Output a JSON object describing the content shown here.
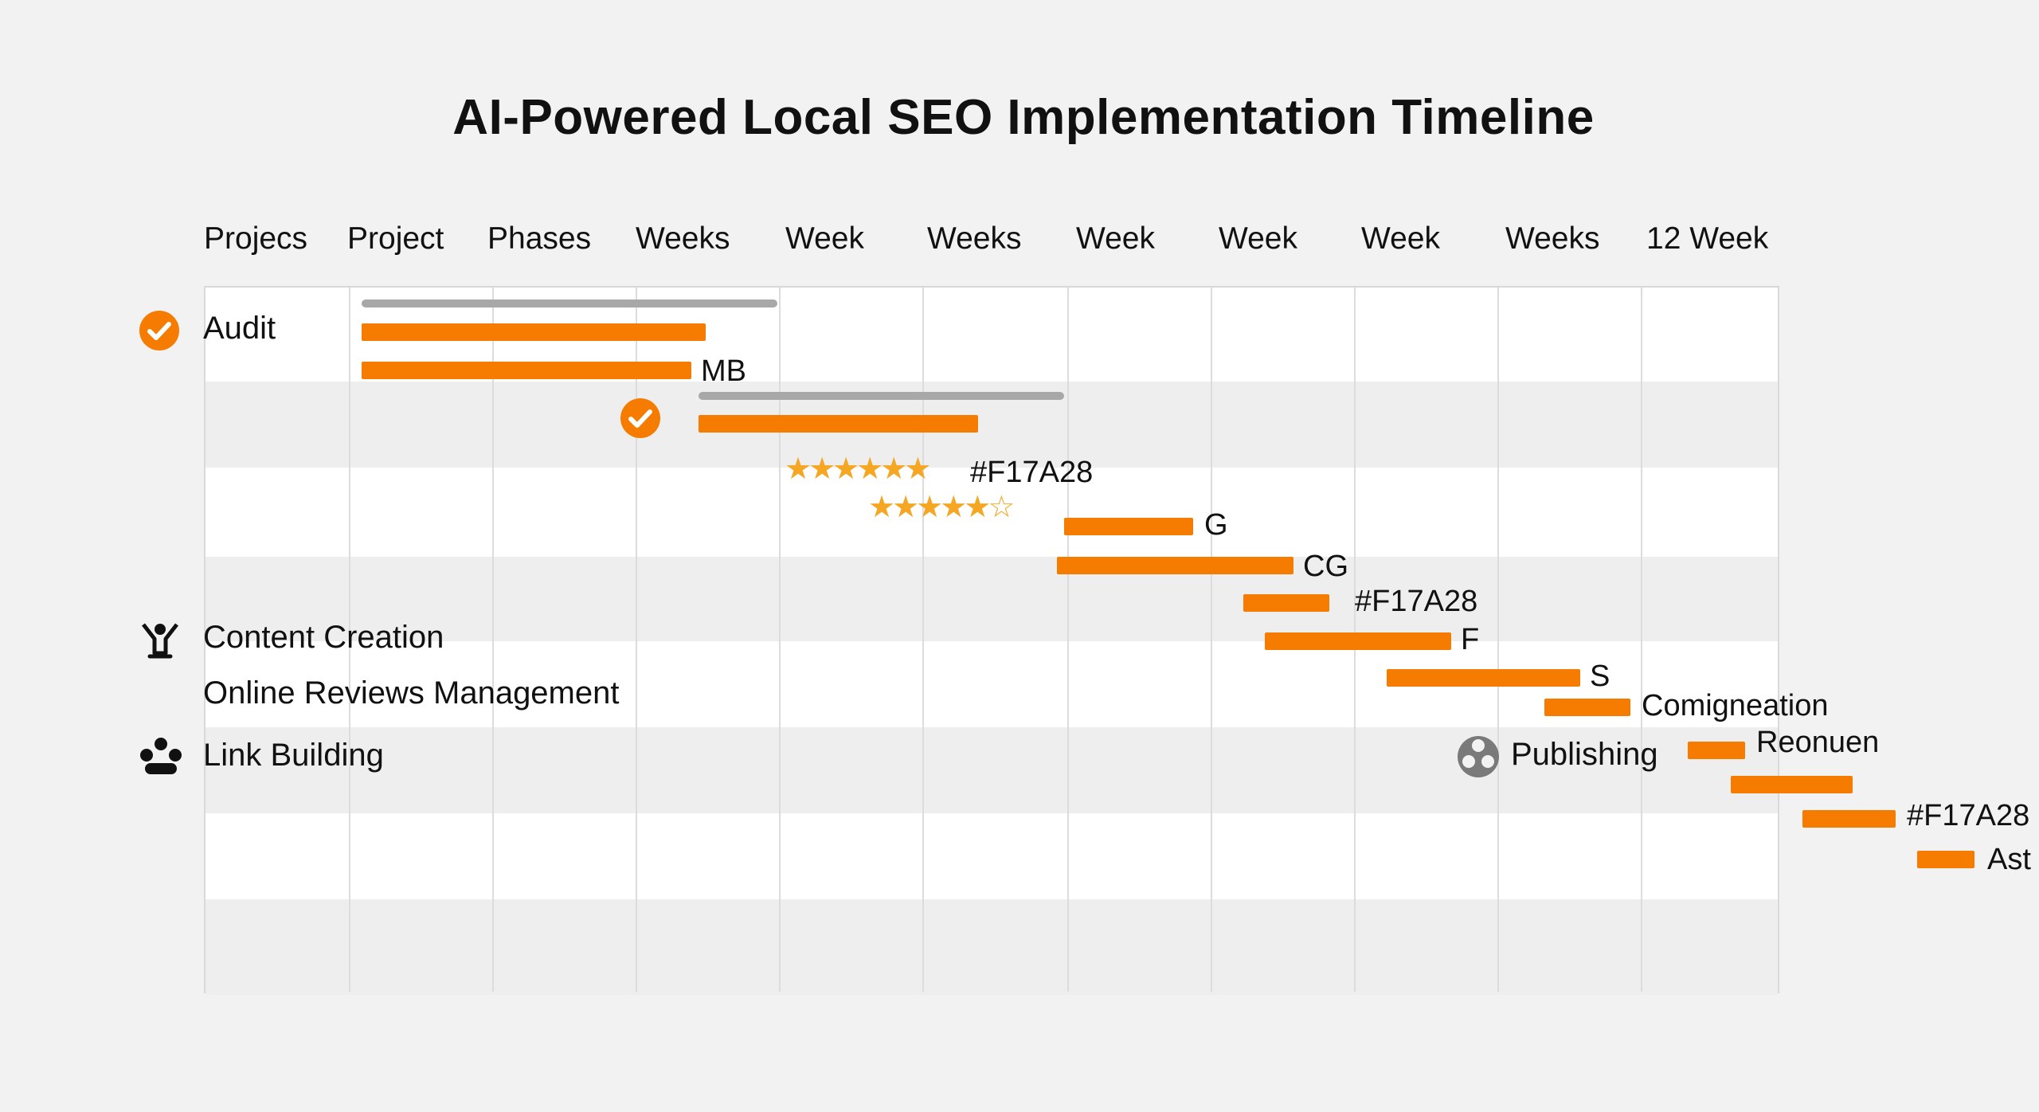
{
  "title": "AI-Powered Local SEO Implementation Timeline",
  "colors": {
    "accent": "#F57C00",
    "summary": "#A8A8A8",
    "star": "#F5A623",
    "band_light": "#ffffff",
    "band_dark": "#eeeeee"
  },
  "column_headers": [
    "Projecs",
    "Project",
    "Phases",
    "Weeks",
    "Week",
    "Weeks",
    "Week",
    "Week",
    "Week",
    "Weeks",
    "12 Week"
  ],
  "tasks": [
    {
      "label": "Audit",
      "icon": "check-circle-icon"
    },
    {
      "label": "Content Creation",
      "icon": "person-raising-arms-icon"
    },
    {
      "label": "Online Reviews Management",
      "icon": ""
    },
    {
      "label": "Link Building",
      "icon": "people-group-icon"
    }
  ],
  "publishing": {
    "label": "Publishing",
    "icon": "grey-users-circle-icon"
  },
  "ratings": [
    {
      "stars": "★★★★★★",
      "value": 6
    },
    {
      "stars": "★★★★★☆",
      "value": 5.5
    }
  ],
  "chart_data": {
    "type": "gantt",
    "title": "AI-Powered Local SEO Implementation Timeline",
    "x_ticks": [
      "Projecs",
      "Project",
      "Phases",
      "Weeks",
      "Week",
      "Weeks",
      "Week",
      "Week",
      "Week",
      "Weeks",
      "12 Week"
    ],
    "xlim": [
      0,
      11
    ],
    "bars": [
      {
        "start": 1.1,
        "end": 4.0,
        "kind": "summary",
        "label": ""
      },
      {
        "start": 1.1,
        "end": 3.5,
        "kind": "task",
        "label": ""
      },
      {
        "start": 1.1,
        "end": 3.4,
        "kind": "task",
        "label": "MB"
      },
      {
        "start": 3.45,
        "end": 6.0,
        "kind": "summary",
        "label": ""
      },
      {
        "start": 3.45,
        "end": 5.4,
        "kind": "task",
        "label": ""
      },
      {
        "start": 6.0,
        "end": 6.9,
        "kind": "task",
        "label": "G"
      },
      {
        "start": 5.95,
        "end": 7.6,
        "kind": "task",
        "label": "CG"
      },
      {
        "start": 7.25,
        "end": 7.85,
        "kind": "task",
        "label": "#F17A28"
      },
      {
        "start": 7.4,
        "end": 8.7,
        "kind": "task",
        "label": "F"
      },
      {
        "start": 8.25,
        "end": 9.6,
        "kind": "task",
        "label": "S"
      },
      {
        "start": 9.35,
        "end": 9.95,
        "kind": "task",
        "label": "Comigneation"
      },
      {
        "start": 10.35,
        "end": 10.75,
        "kind": "task",
        "label": "Reonuen"
      },
      {
        "start": 10.65,
        "end": 11.5,
        "kind": "task",
        "label": ""
      },
      {
        "start": 11.15,
        "end": 11.8,
        "kind": "task",
        "label": "#F17A28"
      },
      {
        "start": 11.95,
        "end": 12.35,
        "kind": "task",
        "label": "Ast"
      }
    ],
    "star_rows": [
      {
        "stars": 6,
        "label": "#F17A28"
      },
      {
        "stars": 5.5,
        "label": ""
      }
    ]
  }
}
